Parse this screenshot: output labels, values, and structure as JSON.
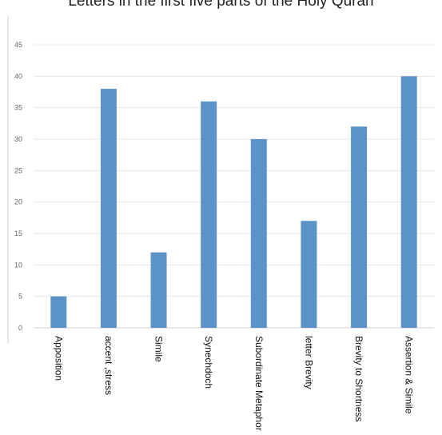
{
  "chart_data": {
    "type": "bar",
    "title": "Letters in the first five parts of the Holy Quran",
    "xlabel": "",
    "ylabel": "",
    "categories": [
      "Apposition",
      "accent ,stress",
      "Simile",
      "Synechdoch",
      "Subordinate Metaphor",
      "letter Brevity",
      "Brevity to Shortness",
      "Assertion & Simile"
    ],
    "values": [
      5,
      38,
      12,
      36,
      30,
      17,
      32,
      40
    ],
    "ylim": [
      0,
      45
    ],
    "yticks": [
      0,
      5,
      10,
      15,
      20,
      25,
      30,
      35,
      40,
      45
    ],
    "grid": true,
    "legend": "none",
    "colors": {
      "bar": "#5B93C9",
      "grid": "#E6E6E6",
      "axis": "#D0D0D0"
    }
  }
}
